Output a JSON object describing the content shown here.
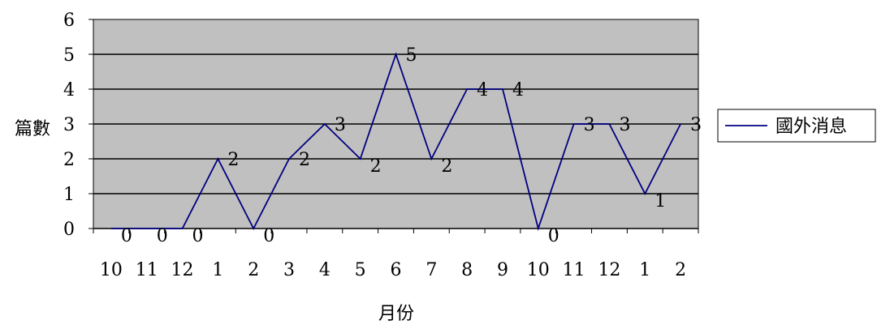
{
  "chart_data": {
    "type": "line",
    "xlabel": "月份",
    "ylabel": "篇數",
    "categories": [
      "10",
      "11",
      "12",
      "1",
      "2",
      "3",
      "4",
      "5",
      "6",
      "7",
      "8",
      "9",
      "10",
      "11",
      "12",
      "1",
      "2"
    ],
    "series": [
      {
        "name": "國外消息",
        "values": [
          0,
          0,
          0,
          2,
          0,
          2,
          3,
          2,
          5,
          2,
          4,
          4,
          0,
          3,
          3,
          1,
          3
        ]
      }
    ],
    "ylim": [
      0,
      6
    ],
    "yticks": [
      "0",
      "1",
      "2",
      "3",
      "4",
      "5",
      "6"
    ],
    "grid": true,
    "legend_position": "right"
  },
  "colors": {
    "plot_background": "#c0c0c0",
    "line": "#000080",
    "grid": "#000000"
  }
}
